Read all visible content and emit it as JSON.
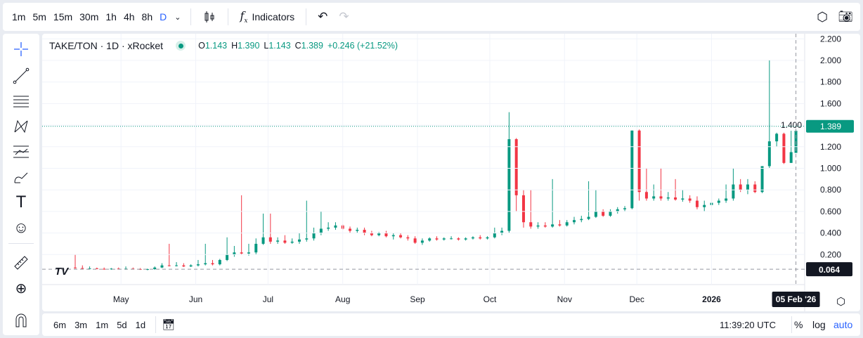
{
  "toolbar": {
    "timeframes": [
      "1m",
      "5m",
      "15m",
      "30m",
      "1h",
      "4h",
      "8h",
      "D"
    ],
    "active": "D",
    "indicators_label": "Indicators"
  },
  "legend": {
    "symbol": "TAKE/TON · 1D · xRocket",
    "o_label": "O",
    "o": "1.143",
    "h_label": "H",
    "h": "1.390",
    "l_label": "L",
    "l": "1.143",
    "c_label": "C",
    "c": "1.389",
    "change": "+0.246 (+21.52%)"
  },
  "bottom": {
    "ranges": [
      "6m",
      "3m",
      "1m",
      "5d",
      "1d"
    ],
    "time": "11:39:20 UTC",
    "percent": "%",
    "log": "log",
    "auto": "auto"
  },
  "colors": {
    "up": "#089981",
    "down": "#f23645",
    "accent": "#2962ff"
  },
  "chart_data": {
    "type": "candlestick",
    "title": "TAKE/TON · 1D · xRocket",
    "start_date": "2025-04-12",
    "ylim": [
      -0.02,
      2.22
    ],
    "y_ticks": [
      "2.200",
      "2.000",
      "1.800",
      "1.600",
      "1.400",
      "1.200",
      "1.000",
      "0.800",
      "0.600",
      "0.400",
      "0.200"
    ],
    "y_tick_values": [
      2.2,
      2.0,
      1.8,
      1.6,
      1.4,
      1.2,
      1.0,
      0.8,
      0.6,
      0.4,
      0.2
    ],
    "x_ticks": [
      {
        "label": "May",
        "day": 19
      },
      {
        "label": "Jun",
        "day": 50
      },
      {
        "label": "Jul",
        "day": 80
      },
      {
        "label": "Aug",
        "day": 111
      },
      {
        "label": "Sep",
        "day": 142
      },
      {
        "label": "Oct",
        "day": 172
      },
      {
        "label": "Nov",
        "day": 203
      },
      {
        "label": "Dec",
        "day": 233
      },
      {
        "label": "2026",
        "day": 264
      }
    ],
    "last_price": "1.389",
    "last_value": 1.389,
    "crosshair_price": "0.064",
    "crosshair_value": 0.064,
    "crosshair_date": "05 Feb '26",
    "crosshair_day": 299,
    "candles": [
      [
        0,
        0.08,
        0.2,
        0.07,
        0.075
      ],
      [
        3,
        0.075,
        0.1,
        0.07,
        0.07
      ],
      [
        6,
        0.07,
        0.09,
        0.065,
        0.072
      ],
      [
        9,
        0.072,
        0.08,
        0.065,
        0.068
      ],
      [
        12,
        0.068,
        0.08,
        0.06,
        0.065
      ],
      [
        15,
        0.065,
        0.075,
        0.06,
        0.07
      ],
      [
        18,
        0.07,
        0.08,
        0.065,
        0.068
      ],
      [
        21,
        0.068,
        0.09,
        0.06,
        0.07
      ],
      [
        24,
        0.07,
        0.08,
        0.065,
        0.066
      ],
      [
        27,
        0.066,
        0.075,
        0.058,
        0.06
      ],
      [
        30,
        0.06,
        0.07,
        0.055,
        0.065
      ],
      [
        33,
        0.065,
        0.09,
        0.06,
        0.08
      ],
      [
        36,
        0.08,
        0.12,
        0.075,
        0.1
      ],
      [
        39,
        0.1,
        0.3,
        0.09,
        0.095
      ],
      [
        42,
        0.095,
        0.13,
        0.09,
        0.1
      ],
      [
        45,
        0.1,
        0.12,
        0.085,
        0.09
      ],
      [
        48,
        0.09,
        0.11,
        0.085,
        0.1
      ],
      [
        51,
        0.1,
        0.15,
        0.09,
        0.11
      ],
      [
        54,
        0.11,
        0.3,
        0.1,
        0.12
      ],
      [
        57,
        0.12,
        0.15,
        0.1,
        0.11
      ],
      [
        60,
        0.11,
        0.16,
        0.1,
        0.15
      ],
      [
        63,
        0.15,
        0.36,
        0.14,
        0.2
      ],
      [
        66,
        0.2,
        0.28,
        0.18,
        0.22
      ],
      [
        69,
        0.22,
        0.75,
        0.2,
        0.21
      ],
      [
        72,
        0.21,
        0.3,
        0.19,
        0.22
      ],
      [
        75,
        0.22,
        0.35,
        0.2,
        0.3
      ],
      [
        78,
        0.3,
        0.58,
        0.29,
        0.36
      ],
      [
        81,
        0.36,
        0.58,
        0.3,
        0.32
      ],
      [
        84,
        0.32,
        0.36,
        0.3,
        0.33
      ],
      [
        87,
        0.33,
        0.38,
        0.3,
        0.31
      ],
      [
        90,
        0.31,
        0.35,
        0.3,
        0.32
      ],
      [
        93,
        0.32,
        0.4,
        0.3,
        0.34
      ],
      [
        96,
        0.34,
        0.7,
        0.32,
        0.35
      ],
      [
        99,
        0.35,
        0.45,
        0.33,
        0.4
      ],
      [
        102,
        0.4,
        0.6,
        0.38,
        0.44
      ],
      [
        105,
        0.44,
        0.5,
        0.42,
        0.45
      ],
      [
        108,
        0.45,
        0.5,
        0.43,
        0.47
      ],
      [
        111,
        0.47,
        0.48,
        0.43,
        0.44
      ],
      [
        114,
        0.44,
        0.46,
        0.4,
        0.42
      ],
      [
        117,
        0.42,
        0.45,
        0.4,
        0.43
      ],
      [
        120,
        0.43,
        0.45,
        0.38,
        0.4
      ],
      [
        123,
        0.4,
        0.42,
        0.37,
        0.38
      ],
      [
        126,
        0.38,
        0.41,
        0.37,
        0.4
      ],
      [
        129,
        0.4,
        0.42,
        0.36,
        0.37
      ],
      [
        132,
        0.37,
        0.4,
        0.34,
        0.38
      ],
      [
        135,
        0.38,
        0.4,
        0.35,
        0.36
      ],
      [
        138,
        0.36,
        0.38,
        0.33,
        0.35
      ],
      [
        141,
        0.35,
        0.37,
        0.3,
        0.31
      ],
      [
        144,
        0.31,
        0.35,
        0.29,
        0.33
      ],
      [
        147,
        0.33,
        0.36,
        0.32,
        0.35
      ],
      [
        150,
        0.35,
        0.37,
        0.33,
        0.34
      ],
      [
        153,
        0.34,
        0.36,
        0.33,
        0.35
      ],
      [
        156,
        0.35,
        0.37,
        0.34,
        0.35
      ],
      [
        159,
        0.35,
        0.36,
        0.33,
        0.34
      ],
      [
        162,
        0.34,
        0.36,
        0.33,
        0.35
      ],
      [
        165,
        0.35,
        0.37,
        0.34,
        0.36
      ],
      [
        168,
        0.36,
        0.38,
        0.34,
        0.35
      ],
      [
        171,
        0.35,
        0.37,
        0.34,
        0.36
      ],
      [
        174,
        0.36,
        0.45,
        0.35,
        0.4
      ],
      [
        177,
        0.4,
        0.45,
        0.38,
        0.42
      ],
      [
        180,
        0.42,
        1.52,
        0.4,
        1.27
      ],
      [
        183,
        1.27,
        1.28,
        0.6,
        0.75
      ],
      [
        186,
        0.75,
        0.8,
        0.45,
        0.5
      ],
      [
        189,
        0.5,
        0.8,
        0.44,
        0.46
      ],
      [
        192,
        0.46,
        0.5,
        0.44,
        0.47
      ],
      [
        195,
        0.47,
        0.5,
        0.45,
        0.46
      ],
      [
        198,
        0.46,
        0.9,
        0.45,
        0.48
      ],
      [
        201,
        0.48,
        0.52,
        0.46,
        0.47
      ],
      [
        204,
        0.47,
        0.52,
        0.46,
        0.5
      ],
      [
        207,
        0.5,
        0.55,
        0.48,
        0.52
      ],
      [
        210,
        0.52,
        0.56,
        0.5,
        0.53
      ],
      [
        213,
        0.53,
        0.88,
        0.52,
        0.55
      ],
      [
        216,
        0.55,
        0.8,
        0.54,
        0.6
      ],
      [
        219,
        0.6,
        0.62,
        0.55,
        0.56
      ],
      [
        222,
        0.56,
        0.62,
        0.55,
        0.6
      ],
      [
        225,
        0.6,
        0.64,
        0.58,
        0.62
      ],
      [
        228,
        0.62,
        0.65,
        0.6,
        0.63
      ],
      [
        231,
        0.63,
        1.35,
        0.62,
        1.35
      ],
      [
        234,
        1.35,
        1.36,
        0.7,
        0.78
      ],
      [
        237,
        0.78,
        1.0,
        0.7,
        0.72
      ],
      [
        240,
        0.72,
        0.85,
        0.7,
        0.74
      ],
      [
        243,
        0.74,
        1.0,
        0.7,
        0.72
      ],
      [
        246,
        0.72,
        0.78,
        0.7,
        0.73
      ],
      [
        249,
        0.73,
        0.9,
        0.7,
        0.71
      ],
      [
        252,
        0.71,
        0.8,
        0.69,
        0.72
      ],
      [
        255,
        0.72,
        0.75,
        0.68,
        0.7
      ],
      [
        258,
        0.7,
        0.74,
        0.62,
        0.64
      ],
      [
        261,
        0.64,
        0.7,
        0.6,
        0.66
      ],
      [
        264,
        0.66,
        0.8,
        0.64,
        0.68
      ],
      [
        267,
        0.68,
        0.72,
        0.66,
        0.7
      ],
      [
        270,
        0.7,
        0.85,
        0.68,
        0.72
      ],
      [
        273,
        0.72,
        1.0,
        0.7,
        0.85
      ],
      [
        276,
        0.85,
        0.9,
        0.78,
        0.8
      ],
      [
        279,
        0.8,
        0.9,
        0.76,
        0.85
      ],
      [
        282,
        0.85,
        0.88,
        0.77,
        0.78
      ],
      [
        285,
        0.78,
        1.02,
        0.77,
        1.02
      ],
      [
        288,
        1.02,
        2.0,
        1.0,
        1.25
      ],
      [
        291,
        1.25,
        1.33,
        1.2,
        1.32
      ],
      [
        294,
        1.32,
        1.33,
        1.04,
        1.05
      ],
      [
        297,
        1.05,
        1.39,
        1.05,
        1.15
      ],
      [
        299,
        1.143,
        1.39,
        1.143,
        1.389
      ]
    ]
  }
}
